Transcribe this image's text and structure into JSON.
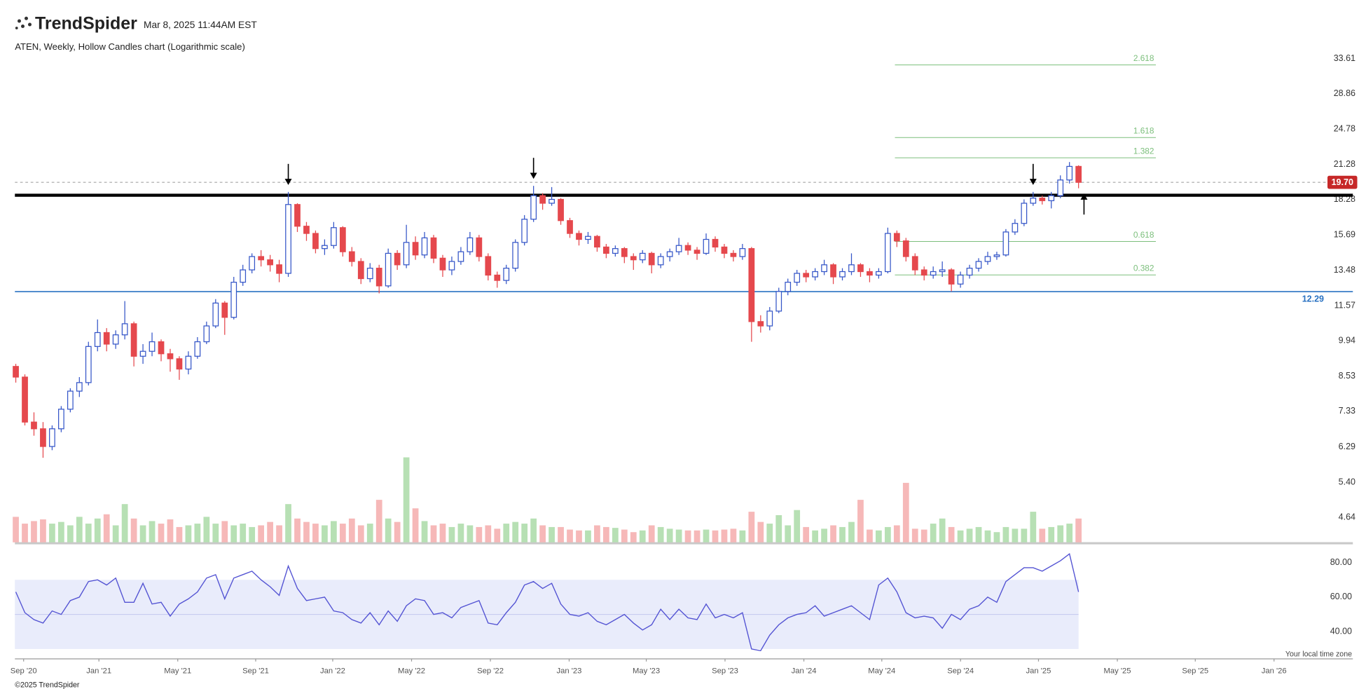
{
  "header": {
    "logo": "TrendSpider",
    "timestamp": "Mar 8, 2025 11:44AM EST"
  },
  "chart_data": {
    "type": "candlestick",
    "title": "ATEN, Weekly, Hollow Candles chart (Logarithmic scale)",
    "log_scale": true,
    "up_color": "#3556c8",
    "down_color": "#e5484d",
    "candles": [
      [
        8.9,
        9.0,
        8.3,
        8.5
      ],
      [
        8.5,
        8.6,
        6.9,
        7.0
      ],
      [
        7.0,
        7.3,
        6.6,
        6.8
      ],
      [
        6.8,
        7.0,
        6.0,
        6.3
      ],
      [
        6.3,
        6.9,
        6.2,
        6.8
      ],
      [
        6.8,
        7.5,
        6.7,
        7.4
      ],
      [
        7.4,
        8.1,
        7.3,
        8.0
      ],
      [
        8.0,
        8.5,
        7.8,
        8.3
      ],
      [
        8.3,
        9.9,
        8.2,
        9.7
      ],
      [
        9.7,
        10.9,
        9.5,
        10.3
      ],
      [
        10.3,
        10.5,
        9.5,
        9.8
      ],
      [
        9.8,
        10.4,
        9.6,
        10.2
      ],
      [
        10.2,
        11.8,
        10.0,
        10.7
      ],
      [
        10.7,
        10.8,
        8.9,
        9.3
      ],
      [
        9.3,
        9.8,
        9.0,
        9.5
      ],
      [
        9.5,
        10.3,
        9.3,
        9.9
      ],
      [
        9.9,
        10.0,
        9.1,
        9.4
      ],
      [
        9.4,
        9.6,
        8.7,
        9.2
      ],
      [
        9.2,
        9.3,
        8.4,
        8.8
      ],
      [
        8.8,
        9.5,
        8.6,
        9.3
      ],
      [
        9.3,
        10.1,
        9.2,
        9.9
      ],
      [
        9.9,
        10.8,
        9.8,
        10.6
      ],
      [
        10.6,
        11.9,
        10.5,
        11.7
      ],
      [
        11.7,
        11.8,
        10.2,
        11.0
      ],
      [
        11.0,
        13.1,
        10.9,
        12.8
      ],
      [
        12.8,
        13.8,
        12.6,
        13.5
      ],
      [
        13.5,
        14.5,
        13.3,
        14.3
      ],
      [
        14.3,
        14.7,
        13.7,
        14.1
      ],
      [
        14.1,
        14.4,
        13.4,
        13.8
      ],
      [
        13.8,
        14.1,
        12.8,
        13.3
      ],
      [
        13.3,
        18.9,
        13.1,
        17.9
      ],
      [
        17.9,
        18.0,
        15.9,
        16.3
      ],
      [
        16.3,
        16.6,
        15.3,
        15.8
      ],
      [
        15.8,
        16.0,
        14.5,
        14.8
      ],
      [
        14.8,
        15.4,
        14.4,
        15.0
      ],
      [
        15.0,
        16.6,
        14.8,
        16.2
      ],
      [
        16.2,
        16.3,
        14.3,
        14.6
      ],
      [
        14.6,
        14.9,
        13.7,
        14.0
      ],
      [
        14.0,
        14.2,
        12.7,
        13.0
      ],
      [
        13.0,
        13.9,
        12.8,
        13.6
      ],
      [
        13.6,
        13.8,
        12.2,
        12.6
      ],
      [
        12.6,
        14.8,
        12.5,
        14.5
      ],
      [
        14.5,
        14.7,
        13.5,
        13.8
      ],
      [
        13.8,
        16.4,
        13.6,
        15.2
      ],
      [
        15.2,
        15.6,
        14.1,
        14.4
      ],
      [
        14.4,
        15.9,
        14.2,
        15.5
      ],
      [
        15.5,
        15.7,
        13.9,
        14.2
      ],
      [
        14.2,
        14.4,
        13.1,
        13.5
      ],
      [
        13.5,
        14.3,
        13.2,
        14.0
      ],
      [
        14.0,
        14.9,
        13.8,
        14.6
      ],
      [
        14.6,
        15.9,
        14.4,
        15.5
      ],
      [
        15.5,
        15.7,
        14.0,
        14.3
      ],
      [
        14.3,
        14.5,
        12.9,
        13.2
      ],
      [
        13.2,
        13.4,
        12.5,
        12.9
      ],
      [
        12.9,
        13.8,
        12.7,
        13.6
      ],
      [
        13.6,
        15.4,
        13.4,
        15.2
      ],
      [
        15.2,
        17.1,
        15.0,
        16.8
      ],
      [
        16.8,
        19.4,
        16.6,
        18.6
      ],
      [
        18.6,
        18.8,
        17.5,
        18.0
      ],
      [
        18.0,
        19.3,
        17.8,
        18.3
      ],
      [
        18.3,
        18.4,
        16.4,
        16.7
      ],
      [
        16.7,
        16.9,
        15.5,
        15.8
      ],
      [
        15.8,
        16.0,
        15.0,
        15.4
      ],
      [
        15.4,
        15.9,
        15.1,
        15.6
      ],
      [
        15.6,
        15.7,
        14.6,
        14.9
      ],
      [
        14.9,
        15.1,
        14.2,
        14.5
      ],
      [
        14.5,
        15.0,
        14.3,
        14.8
      ],
      [
        14.8,
        14.9,
        13.9,
        14.3
      ],
      [
        14.3,
        14.5,
        13.5,
        14.1
      ],
      [
        14.1,
        14.7,
        13.9,
        14.5
      ],
      [
        14.5,
        14.6,
        13.3,
        13.8
      ],
      [
        13.8,
        14.5,
        13.6,
        14.3
      ],
      [
        14.3,
        14.8,
        14.0,
        14.6
      ],
      [
        14.6,
        15.5,
        14.4,
        15.0
      ],
      [
        15.0,
        15.2,
        14.4,
        14.7
      ],
      [
        14.7,
        14.9,
        14.1,
        14.5
      ],
      [
        14.5,
        15.8,
        14.4,
        15.4
      ],
      [
        15.4,
        15.6,
        14.6,
        14.9
      ],
      [
        14.9,
        15.1,
        14.2,
        14.5
      ],
      [
        14.5,
        14.7,
        14.0,
        14.3
      ],
      [
        14.3,
        15.1,
        14.1,
        14.8
      ],
      [
        14.8,
        14.9,
        9.9,
        10.8
      ],
      [
        10.8,
        11.1,
        10.3,
        10.6
      ],
      [
        10.6,
        11.5,
        10.4,
        11.3
      ],
      [
        11.3,
        12.5,
        11.2,
        12.3
      ],
      [
        12.3,
        13.0,
        12.1,
        12.8
      ],
      [
        12.8,
        13.5,
        12.6,
        13.3
      ],
      [
        13.3,
        13.5,
        12.8,
        13.1
      ],
      [
        13.1,
        13.6,
        12.9,
        13.4
      ],
      [
        13.4,
        14.1,
        13.2,
        13.8
      ],
      [
        13.8,
        13.9,
        12.7,
        13.1
      ],
      [
        13.1,
        13.6,
        12.9,
        13.4
      ],
      [
        13.4,
        14.5,
        13.2,
        13.8
      ],
      [
        13.8,
        13.9,
        13.1,
        13.4
      ],
      [
        13.4,
        13.6,
        12.8,
        13.2
      ],
      [
        13.2,
        13.6,
        13.0,
        13.4
      ],
      [
        13.4,
        16.2,
        13.3,
        15.8
      ],
      [
        15.8,
        16.0,
        14.9,
        15.3
      ],
      [
        15.3,
        15.5,
        14.0,
        14.3
      ],
      [
        14.3,
        14.5,
        13.2,
        13.5
      ],
      [
        13.5,
        13.7,
        12.9,
        13.2
      ],
      [
        13.2,
        13.7,
        13.0,
        13.4
      ],
      [
        13.4,
        14.0,
        13.1,
        13.5
      ],
      [
        13.5,
        13.6,
        12.3,
        12.7
      ],
      [
        12.7,
        13.4,
        12.5,
        13.2
      ],
      [
        13.2,
        13.8,
        13.0,
        13.6
      ],
      [
        13.6,
        14.2,
        13.4,
        14.0
      ],
      [
        14.0,
        14.6,
        13.8,
        14.3
      ],
      [
        14.3,
        14.6,
        14.1,
        14.4
      ],
      [
        14.4,
        16.1,
        14.3,
        15.9
      ],
      [
        15.9,
        16.8,
        15.7,
        16.5
      ],
      [
        16.5,
        18.3,
        16.3,
        18.0
      ],
      [
        18.0,
        18.9,
        17.8,
        18.4
      ],
      [
        18.4,
        18.6,
        17.9,
        18.2
      ],
      [
        18.2,
        18.9,
        17.6,
        18.6
      ],
      [
        18.6,
        20.3,
        18.4,
        19.9
      ],
      [
        19.9,
        21.5,
        19.6,
        21.1
      ],
      [
        21.1,
        21.2,
        19.2,
        19.7
      ]
    ],
    "ylim": [
      4.15,
      36.5
    ],
    "yticks": [
      33.61,
      28.86,
      24.78,
      21.28,
      18.28,
      15.69,
      13.48,
      11.57,
      9.94,
      8.53,
      7.33,
      6.29,
      {
        "value": 5.4,
        "label": "5.40"
      },
      4.64
    ],
    "last_price": {
      "value": 19.7,
      "label": "19.70",
      "color": "#c62828"
    },
    "support": 18.63,
    "level": {
      "value": 12.29,
      "color": "#2a72c2"
    },
    "fib": [
      {
        "level": 2.618,
        "price": 32.7
      },
      {
        "level": 1.618,
        "price": 23.9
      },
      {
        "level": 1.382,
        "price": 21.9
      },
      {
        "level": 0.618,
        "price": 15.26
      },
      {
        "level": 0.382,
        "price": 13.21
      }
    ],
    "fib_color": "#7cbf7c",
    "volume": [
      30,
      22,
      25,
      27,
      22,
      24,
      20,
      30,
      22,
      28,
      33,
      20,
      45,
      28,
      20,
      25,
      22,
      27,
      18,
      20,
      22,
      30,
      22,
      25,
      20,
      22,
      18,
      20,
      24,
      20,
      45,
      28,
      24,
      22,
      20,
      25,
      22,
      28,
      20,
      22,
      50,
      28,
      24,
      100,
      40,
      25,
      20,
      22,
      18,
      22,
      20,
      18,
      20,
      16,
      22,
      24,
      22,
      28,
      20,
      18,
      18,
      15,
      14,
      14,
      20,
      18,
      17,
      15,
      12,
      14,
      20,
      18,
      16,
      15,
      14,
      14,
      15,
      14,
      15,
      16,
      14,
      36,
      24,
      22,
      32,
      20,
      38,
      18,
      14,
      16,
      20,
      18,
      24,
      50,
      15,
      14,
      18,
      20,
      70,
      16,
      15,
      22,
      28,
      18,
      14,
      16,
      18,
      14,
      12,
      18,
      16,
      16,
      36,
      16,
      18,
      20,
      22,
      28
    ],
    "volume_up_color": "#b7e0b4",
    "volume_down_color": "#f6b8b8",
    "rsi": [
      63,
      51,
      47,
      45,
      52,
      50,
      58,
      60,
      69,
      70,
      67,
      71,
      57,
      57,
      68,
      56,
      57,
      49,
      56,
      59,
      63,
      71,
      73,
      59,
      71,
      73,
      75,
      70,
      66,
      61,
      78,
      65,
      58,
      59,
      60,
      52,
      51,
      47,
      45,
      51,
      44,
      52,
      46,
      55,
      59,
      58,
      50,
      51,
      48,
      54,
      56,
      58,
      45,
      44,
      51,
      57,
      67,
      69,
      65,
      68,
      56,
      50,
      49,
      51,
      46,
      44,
      47,
      50,
      45,
      41,
      44,
      53,
      47,
      53,
      48,
      47,
      56,
      48,
      50,
      48,
      51,
      30,
      29,
      38,
      44,
      48,
      50,
      51,
      55,
      49,
      51,
      53,
      55,
      51,
      47,
      67,
      71,
      63,
      51,
      48,
      49,
      48,
      42,
      50,
      47,
      53,
      55,
      60,
      57,
      69,
      73,
      77,
      77,
      75,
      78,
      81,
      85,
      63
    ],
    "rsi_color": "#5353d3",
    "rsi_ylim": [
      24.3,
      86.1
    ],
    "rsi_yticks": [
      {
        "value": 80,
        "label": "80.00"
      },
      {
        "value": 60,
        "label": "60.00"
      },
      {
        "value": 40,
        "label": "40.00"
      }
    ],
    "rsi_band": [
      30,
      70
    ],
    "rsi_mid": 50,
    "xlim": [
      -0.1,
      147.2
    ],
    "xticks": [
      {
        "value": 0.86,
        "label": "Sep '20"
      },
      {
        "value": 9.15,
        "label": "Jan '21"
      },
      {
        "value": 17.83,
        "label": "May '21"
      },
      {
        "value": 26.41,
        "label": "Sep '21"
      },
      {
        "value": 34.89,
        "label": "Jan '22"
      },
      {
        "value": 43.57,
        "label": "May '22"
      },
      {
        "value": 52.25,
        "label": "Sep '22"
      },
      {
        "value": 60.92,
        "label": "Jan '23"
      },
      {
        "value": 69.41,
        "label": "May '23"
      },
      {
        "value": 78.08,
        "label": "Sep '23"
      },
      {
        "value": 86.76,
        "label": "Jan '24"
      },
      {
        "value": 95.34,
        "label": "May '24"
      },
      {
        "value": 104.01,
        "label": "Sep '24"
      },
      {
        "value": 112.59,
        "label": "Jan '25"
      },
      {
        "value": 121.27,
        "label": "May '25"
      },
      {
        "value": 129.85,
        "label": "Sep '25"
      },
      {
        "value": 138.52,
        "label": "Jan '26"
      }
    ],
    "timezone_note": "Your local time zone"
  },
  "footer": "©2025 TrendSpider"
}
